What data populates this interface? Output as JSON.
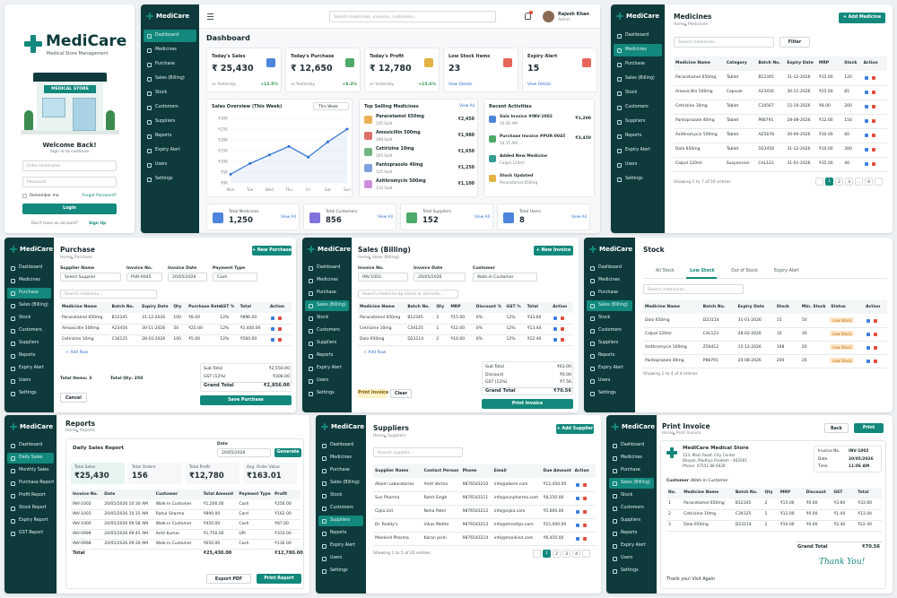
{
  "brand": "MediCare",
  "menu": [
    "Dashboard",
    "Medicines",
    "Purchase",
    "Sales (Billing)",
    "Stock",
    "Customers",
    "Suppliers",
    "Reports",
    "Expiry Alert",
    "Users",
    "Settings"
  ],
  "login": {
    "tagline": "Medical Store Management",
    "store_sign": "MEDICAL STORE",
    "welcome": "Welcome Back!",
    "subtitle": "Sign in to continue",
    "username": "Enter Username",
    "password": "Password",
    "remember": "Remember me",
    "forgot": "Forgot Password?",
    "button": "Login",
    "signup_q": "Don't have an account?",
    "signup": "Sign Up"
  },
  "dashboard": {
    "title": "Dashboard",
    "search": "Search medicines, invoices, customers...",
    "user": "Rajesh Khan",
    "role": "Admin",
    "cards": [
      {
        "label": "Today's Sales",
        "value": "₹ 25,430",
        "note": "vs Yesterday",
        "change": "+12.5%"
      },
      {
        "label": "Today's Purchase",
        "value": "₹ 12,650",
        "note": "vs Yesterday",
        "change": "+8.3%"
      },
      {
        "label": "Today's Profit",
        "value": "₹ 12,780",
        "note": "vs Yesterday",
        "change": "+15.6%"
      },
      {
        "label": "Low Stock Items",
        "value": "23",
        "note": "View Details"
      },
      {
        "label": "Expiry Alert",
        "value": "15",
        "note": "View Details"
      }
    ],
    "chart": {
      "type": "line",
      "title": "Sales Overview (This Week)",
      "dropdown": "This Week",
      "color": "#2f6fd6",
      "x": [
        "Mon",
        "Tue",
        "Wed",
        "Thu",
        "Fri",
        "Sat",
        "Sun"
      ],
      "values": [
        4,
        9,
        13,
        17,
        12,
        19,
        25
      ],
      "ylim": [
        0,
        30
      ],
      "yticks": [
        {
          "value": 0,
          "label": "₹0K"
        },
        {
          "value": 5,
          "label": "₹5K"
        },
        {
          "value": 10,
          "label": "₹10K"
        },
        {
          "value": 15,
          "label": "₹15K"
        },
        {
          "value": 20,
          "label": "₹20K"
        },
        {
          "value": 25,
          "label": "₹25K"
        },
        {
          "value": 30,
          "label": "₹30K"
        }
      ],
      "grid": true
    },
    "top": {
      "title": "Top Selling Medicines",
      "link": "View All",
      "items": [
        {
          "name": "Paracetamol 650mg",
          "sub": "245 Sold",
          "value": "₹2,450"
        },
        {
          "name": "Amoxicillin 500mg",
          "sub": "198 Sold",
          "value": "₹1,980"
        },
        {
          "name": "Cetirizine 10mg",
          "sub": "165 Sold",
          "value": "₹1,650"
        },
        {
          "name": "Pantoprazole 40mg",
          "sub": "125 Sold",
          "value": "₹1,250"
        },
        {
          "name": "Azithromycin 500mg",
          "sub": "110 Sold",
          "value": "₹1,100"
        }
      ]
    },
    "activities": {
      "title": "Recent Activities",
      "items": [
        {
          "text": "Sale Invoice #INV-1002",
          "sub": "10:30 AM",
          "value": "₹1,200"
        },
        {
          "text": "Purchase Invoice #PUR-0045",
          "sub": "10:15 AM",
          "value": "₹3,450"
        },
        {
          "text": "Added New Medicine",
          "sub": "Calpol 120ml"
        },
        {
          "text": "Stock Updated",
          "sub": "Paracetamol 650mg"
        }
      ]
    },
    "totals": [
      {
        "label": "Total Medicines",
        "value": "1,250",
        "link": "View All"
      },
      {
        "label": "Total Customers",
        "value": "856",
        "link": "View All"
      },
      {
        "label": "Total Suppliers",
        "value": "152",
        "link": "View All"
      },
      {
        "label": "Total Users",
        "value": "8",
        "link": "View All"
      }
    ]
  },
  "medicines": {
    "title": "Medicines",
    "breadcrumb": [
      "Home",
      "Medicines"
    ],
    "button": "+ Add Medicine",
    "search": "Search medicines...",
    "filter": "Filter",
    "columns": [
      "Medicine Name",
      "Category",
      "Batch No.",
      "Expiry Date",
      "MRP",
      "Stock",
      "Action"
    ],
    "rows": [
      [
        "Paracetamol 650mg",
        "Tablet",
        "B12345",
        "31-12-2026",
        "₹15.00",
        "120"
      ],
      [
        "Amoxicillin 500mg",
        "Capsule",
        "A23456",
        "30-11-2026",
        "₹25.00",
        "85"
      ],
      [
        "Cetirizine 10mg",
        "Tablet",
        "C34567",
        "15-10-2026",
        "₹8.00",
        "200"
      ],
      [
        "Pantoprazole 40mg",
        "Tablet",
        "P88791",
        "28-08-2026",
        "₹12.00",
        "150"
      ],
      [
        "Azithromycin 500mg",
        "Tablet",
        "AZ5678",
        "30-09-2026",
        "₹30.00",
        "60"
      ],
      [
        "Dolo 650mg",
        "Tablet",
        "D23456",
        "31-12-2026",
        "₹10.00",
        "300"
      ],
      [
        "Calpol 120ml",
        "Suspension",
        "CAL123",
        "31-01-2026",
        "₹35.00",
        "40"
      ]
    ],
    "footer": "Showing 1 to 7 of 50 entries",
    "pages": [
      "1",
      "2",
      "3",
      "...",
      "4"
    ]
  },
  "purchase": {
    "title": "Purchase",
    "breadcrumb": [
      "Home",
      "Purchase"
    ],
    "button": "+ New Purchase",
    "fields": [
      {
        "label": "Supplier Name",
        "value": "Select Supplier"
      },
      {
        "label": "Invoice No.",
        "value": "PUR-0045"
      },
      {
        "label": "Invoice Date",
        "value": "20/05/2026"
      },
      {
        "label": "Payment Type",
        "value": "Cash"
      }
    ],
    "search": "Search medicine...",
    "columns": [
      "Medicine Name",
      "Batch No.",
      "Expiry Date",
      "Qty",
      "Purchase Rate",
      "GST %",
      "Total",
      "Action"
    ],
    "rows": [
      [
        "Paracetamol 650mg",
        "B12345",
        "31-12-2026",
        "100",
        "₹8.00",
        "12%",
        "₹896.00"
      ],
      [
        "Amoxicillin 500mg",
        "A23456",
        "30-11-2026",
        "50",
        "₹25.00",
        "12%",
        "₹1,400.00"
      ],
      [
        "Cetirizine 10mg",
        "C34125",
        "28-10-2026",
        "100",
        "₹5.00",
        "12%",
        "₹560.00"
      ]
    ],
    "add_row": "+ Add Row",
    "total_items": "Total Items: 3",
    "total_qty": "Total Qty: 250",
    "totals": [
      {
        "label": "Sub Total",
        "value": "₹2,550.00"
      },
      {
        "label": "GST (12%)",
        "value": "₹306.00"
      },
      {
        "label": "Grand Total",
        "value": "₹2,856.00"
      }
    ],
    "cancel": "Cancel",
    "save": "Save Purchase"
  },
  "sales": {
    "title": "Sales (Billing)",
    "breadcrumb": [
      "Home",
      "Sales (Billing)"
    ],
    "button": "+ New Invoice",
    "fields": [
      {
        "label": "Invoice No.",
        "value": "INV-1002"
      },
      {
        "label": "Invoice Date",
        "value": "20/05/2026"
      },
      {
        "label": "Customer",
        "value": "Walk-in Customer"
      }
    ],
    "search": "Search medicine by name or barcode...",
    "columns": [
      "Medicine Name",
      "Batch No.",
      "Qty",
      "MRP",
      "Discount %",
      "GST %",
      "Total",
      "Action"
    ],
    "rows": [
      [
        "Paracetamol 650mg",
        "B12345",
        "2",
        "₹15.00",
        "0%",
        "12%",
        "₹33.60"
      ],
      [
        "Cetirizine 10mg",
        "C34125",
        "1",
        "₹12.00",
        "0%",
        "12%",
        "₹13.44"
      ],
      [
        "Dolo 650mg",
        "D23114",
        "2",
        "₹10.00",
        "0%",
        "12%",
        "₹22.40"
      ]
    ],
    "add_row": "+ Add Row",
    "totals": [
      {
        "label": "Sub Total",
        "value": "₹63.00"
      },
      {
        "label": "Discount",
        "value": "₹0.00"
      },
      {
        "label": "GST (12%)",
        "value": "₹7.56"
      },
      {
        "label": "Grand Total",
        "value": "₹70.56"
      }
    ],
    "print": "Print Invoice",
    "clear": "Clear"
  },
  "stock": {
    "title": "Stock",
    "tabs": [
      "All Stock",
      "Low Stock",
      "Out of Stock",
      "Expiry Alert"
    ],
    "search": "Search medicines...",
    "columns": [
      "Medicine Name",
      "Batch No.",
      "Expiry Date",
      "Stock",
      "Min. Stock",
      "Status",
      "Action"
    ],
    "rows": [
      [
        "Dolo 650mg",
        "D23114",
        "31-01-2026",
        "15",
        "50",
        "Low Stock"
      ],
      [
        "Calpol 120ml",
        "CAL123",
        "28-02-2026",
        "10",
        "30",
        "Low Stock"
      ],
      [
        "Azithromycin 500mg",
        "Z56412",
        "15-12-2026",
        "198",
        "20",
        "Low Stock"
      ],
      [
        "Pantoprazole 40mg",
        "P88791",
        "20-08-2026",
        "200",
        "20",
        "Low Stock"
      ]
    ],
    "footer": "Showing 1 to 4 of 4 entries"
  },
  "reports": {
    "title": "Reports",
    "breadcrumb": [
      "Home",
      "Reports"
    ],
    "menu": [
      "Dashboard",
      "Daily Sales",
      "Monthly Sales",
      "Purchase Report",
      "Profit Report",
      "Stock Report",
      "Expiry Report",
      "GST Report"
    ],
    "heading": "Daily Sales Report",
    "date_label": "Date",
    "date": "20/05/2026",
    "generate": "Generate",
    "cards": [
      {
        "label": "Total Sales",
        "value": "₹25,430"
      },
      {
        "label": "Total Orders",
        "value": "156"
      },
      {
        "label": "Total Profit",
        "value": "₹12,780"
      },
      {
        "label": "Avg. Order Value",
        "value": "₹163.01"
      }
    ],
    "columns": [
      "Invoice No.",
      "Date",
      "Customer",
      "Total Amount",
      "Payment Type",
      "Profit"
    ],
    "rows": [
      [
        "INV-1002",
        "20/05/2026 10:30 AM",
        "Walk-in Customer",
        "₹1,200.00",
        "Cash",
        "₹256.00"
      ],
      [
        "INV-1001",
        "20/05/2026 10:15 AM",
        "Rahul Sharma",
        "₹890.00",
        "Card",
        "₹162.00"
      ],
      [
        "INV-1000",
        "20/05/2026 09:58 AM",
        "Walk-in Customer",
        "₹450.00",
        "Cash",
        "₹87.00"
      ],
      [
        "INV-0999",
        "20/05/2026 09:45 AM",
        "Amit Kumar",
        "₹1,750.00",
        "UPI",
        "₹310.00"
      ],
      [
        "INV-0998",
        "20/05/2026 09:30 AM",
        "Walk-in Customer",
        "₹650.00",
        "Cash",
        "₹130.00"
      ]
    ],
    "total": {
      "label": "Total",
      "amount": "₹25,430.00",
      "profit": "₹12,780.00"
    },
    "export": "Export PDF",
    "print": "Print Report"
  },
  "suppliers": {
    "title": "Suppliers",
    "breadcrumb": [
      "Home",
      "Suppliers"
    ],
    "button": "+ Add Supplier",
    "search": "Search supplier...",
    "columns": [
      "Supplier Name",
      "Contact Person",
      "Phone",
      "Email",
      "Due Amount",
      "Action"
    ],
    "rows": [
      [
        "Alkem Laboratories",
        "Amit Verma",
        "9876543210",
        "info@alkem.com",
        "₹12,450.00"
      ],
      [
        "Sun Pharma",
        "Rohit Singh",
        "9876543211",
        "info@sunpharma.com",
        "₹8,250.00"
      ],
      [
        "Cipla Ltd",
        "Neha Patel",
        "9876543212",
        "info@cipla.com",
        "₹5,600.00"
      ],
      [
        "Dr. Reddy's",
        "Vikas Mehta",
        "9876543213",
        "info@drreddys.com",
        "₹15,000.00"
      ],
      [
        "Mankind Pharma",
        "Karan Joshi",
        "9876543214",
        "info@mankind.com",
        "₹6,450.00"
      ]
    ],
    "footer": "Showing 1 to 5 of 20 entries",
    "pages": [
      "1",
      "2",
      "3",
      "4"
    ]
  },
  "invoice": {
    "title": "Print Invoice",
    "breadcrumb": [
      "Home",
      "Print Invoice"
    ],
    "back": "Back",
    "print": "Print",
    "store": "MediCare Medical Store",
    "address": [
      "123, Main Road, City Center",
      "Bhopal, Madhya Pradesh - 462001",
      "Phone: 07551 88 6628"
    ],
    "meta": [
      {
        "label": "Invoice No.",
        "value": "INV-1002"
      },
      {
        "label": "Date",
        "value": "20/05/2026"
      },
      {
        "label": "Time",
        "value": "11:06 AM"
      }
    ],
    "customer_label": "Customer :",
    "customer": "Walk-in Customer",
    "columns": [
      "No.",
      "Medicine Name",
      "Batch No.",
      "Qty",
      "MRP",
      "Discount",
      "GST",
      "Total"
    ],
    "rows": [
      [
        "1",
        "Paracetamol 650mg",
        "B12345",
        "2",
        "₹15.00",
        "₹0.00",
        "₹3.60",
        "₹33.60"
      ],
      [
        "2",
        "Cetirizine 10mg",
        "C34125",
        "1",
        "₹12.00",
        "₹0.00",
        "₹1.44",
        "₹13.44"
      ],
      [
        "3",
        "Dolo 650mg",
        "D23114",
        "2",
        "₹10.00",
        "₹0.00",
        "₹2.40",
        "₹22.40"
      ]
    ],
    "grand_label": "Grand Total",
    "grand": "₹70.56",
    "thanks": "Thank you! Visit Again",
    "signature": "Thank You!"
  }
}
